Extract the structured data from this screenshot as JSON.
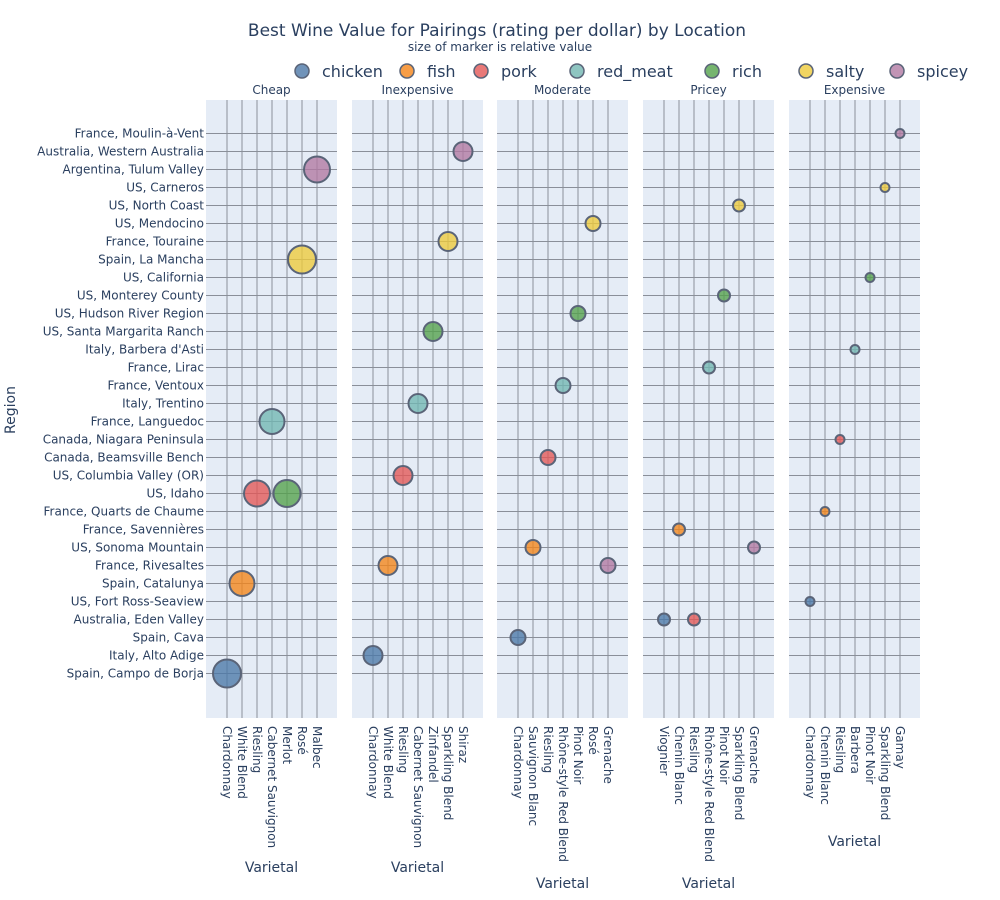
{
  "chart_data": {
    "type": "scatter",
    "title": "Best Wine Value for Pairings (rating per dollar) by Location",
    "subtitle": "size of marker is relative value",
    "ylabel": "Region",
    "xlabel": "Varietal",
    "legend_placement": "top-right",
    "colors": {
      "chicken": "#4c78a8",
      "fish": "#f58518",
      "pork": "#e45756",
      "red_meat": "#72b7b2",
      "rich": "#54a24b",
      "salty": "#eeca3b",
      "spicey": "#b279a2"
    },
    "legend": [
      "chicken",
      "fish",
      "pork",
      "red_meat",
      "rich",
      "salty",
      "spicey"
    ],
    "regions": [
      "Spain, Campo de Borja",
      "Italy, Alto Adige",
      "Spain, Cava",
      "Australia, Eden Valley",
      "US, Fort Ross-Seaview",
      "Spain, Catalunya",
      "France, Rivesaltes",
      "US, Sonoma Mountain",
      "France, Savennières",
      "France, Quarts de Chaume",
      "US, Idaho",
      "US, Columbia Valley (OR)",
      "Canada, Beamsville Bench",
      "Canada, Niagara Peninsula",
      "France, Languedoc",
      "Italy, Trentino",
      "France, Ventoux",
      "France, Lirac",
      "Italy, Barbera d'Asti",
      "US, Santa Margarita Ranch",
      "US, Hudson River Region",
      "US, Monterey County",
      "US, California",
      "Spain, La Mancha",
      "France, Touraine",
      "US, Mendocino",
      "US, North Coast",
      "US, Carneros",
      "Argentina, Tulum Valley",
      "Australia, Western Australia",
      "France, Moulin-à-Vent"
    ],
    "panels": [
      {
        "name": "Cheap",
        "categories": [
          "Chardonnay",
          "White Blend",
          "Riesling",
          "Cabernet Sauvignon",
          "Merlot",
          "Rosé",
          "Malbec"
        ],
        "points": [
          {
            "x": "Chardonnay",
            "y": "Spain, Campo de Borja",
            "pairing": "chicken",
            "size": 14
          },
          {
            "x": "White Blend",
            "y": "Spain, Catalunya",
            "pairing": "fish",
            "size": 12.5
          },
          {
            "x": "Riesling",
            "y": "US, Idaho",
            "pairing": "pork",
            "size": 13
          },
          {
            "x": "Cabernet Sauvignon",
            "y": "France, Languedoc",
            "pairing": "red_meat",
            "size": 12.5
          },
          {
            "x": "Merlot",
            "y": "US, Idaho",
            "pairing": "rich",
            "size": 13.5
          },
          {
            "x": "Rosé",
            "y": "Spain, La Mancha",
            "pairing": "salty",
            "size": 14
          },
          {
            "x": "Malbec",
            "y": "Argentina, Tulum Valley",
            "pairing": "spicey",
            "size": 13
          }
        ]
      },
      {
        "name": "Inexpensive",
        "categories": [
          "Chardonnay",
          "White Blend",
          "Riesling",
          "Cabernet Sauvignon",
          "Zinfandel",
          "Sparkling Blend",
          "Shiraz"
        ],
        "points": [
          {
            "x": "Chardonnay",
            "y": "Italy, Alto Adige",
            "pairing": "chicken",
            "size": 9.5
          },
          {
            "x": "White Blend",
            "y": "France, Rivesaltes",
            "pairing": "fish",
            "size": 9.5
          },
          {
            "x": "Riesling",
            "y": "US, Columbia Valley (OR)",
            "pairing": "pork",
            "size": 9.5
          },
          {
            "x": "Cabernet Sauvignon",
            "y": "Italy, Trentino",
            "pairing": "red_meat",
            "size": 9.5
          },
          {
            "x": "Zinfandel",
            "y": "US, Santa Margarita Ranch",
            "pairing": "rich",
            "size": 9.5
          },
          {
            "x": "Sparkling Blend",
            "y": "France, Touraine",
            "pairing": "salty",
            "size": 9.5
          },
          {
            "x": "Shiraz",
            "y": "Australia, Western Australia",
            "pairing": "spicey",
            "size": 9.5
          }
        ]
      },
      {
        "name": "Moderate",
        "categories": [
          "Chardonnay",
          "Sauvignon Blanc",
          "Riesling",
          "Rhône-style Red Blend",
          "Pinot Noir",
          "Rosé",
          "Grenache"
        ],
        "points": [
          {
            "x": "Chardonnay",
            "y": "Spain, Cava",
            "pairing": "chicken",
            "size": 7.5
          },
          {
            "x": "Sauvignon Blanc",
            "y": "US, Sonoma Mountain",
            "pairing": "fish",
            "size": 7.5
          },
          {
            "x": "Riesling",
            "y": "Canada, Beamsville Bench",
            "pairing": "pork",
            "size": 7.5
          },
          {
            "x": "Rhône-style Red Blend",
            "y": "France, Ventoux",
            "pairing": "red_meat",
            "size": 7.5
          },
          {
            "x": "Pinot Noir",
            "y": "US, Hudson River Region",
            "pairing": "rich",
            "size": 7.5
          },
          {
            "x": "Rosé",
            "y": "US, Mendocino",
            "pairing": "salty",
            "size": 7.5
          },
          {
            "x": "Grenache",
            "y": "France, Rivesaltes",
            "pairing": "spicey",
            "size": 7.5
          }
        ]
      },
      {
        "name": "Pricey",
        "categories": [
          "Viognier",
          "Chenin Blanc",
          "Riesling",
          "Rhône-style Red Blend",
          "Pinot Noir",
          "Sparkling Blend",
          "Grenache"
        ],
        "points": [
          {
            "x": "Viognier",
            "y": "Australia, Eden Valley",
            "pairing": "chicken",
            "size": 6
          },
          {
            "x": "Chenin Blanc",
            "y": "France, Savennières",
            "pairing": "fish",
            "size": 6
          },
          {
            "x": "Riesling",
            "y": "Australia, Eden Valley",
            "pairing": "pork",
            "size": 6
          },
          {
            "x": "Rhône-style Red Blend",
            "y": "France, Lirac",
            "pairing": "red_meat",
            "size": 6
          },
          {
            "x": "Pinot Noir",
            "y": "US, Monterey County",
            "pairing": "rich",
            "size": 6
          },
          {
            "x": "Sparkling Blend",
            "y": "US, North Coast",
            "pairing": "salty",
            "size": 6
          },
          {
            "x": "Grenache",
            "y": "US, Sonoma Mountain",
            "pairing": "spicey",
            "size": 6
          }
        ]
      },
      {
        "name": "Expensive",
        "categories": [
          "Chardonnay",
          "Chenin Blanc",
          "Riesling",
          "Barbera",
          "Pinot Noir",
          "Sparkling Blend",
          "Gamay"
        ],
        "points": [
          {
            "x": "Chardonnay",
            "y": "US, Fort Ross-Seaview",
            "pairing": "chicken",
            "size": 4.5
          },
          {
            "x": "Chenin Blanc",
            "y": "France, Quarts de Chaume",
            "pairing": "fish",
            "size": 4.5
          },
          {
            "x": "Riesling",
            "y": "Canada, Niagara Peninsula",
            "pairing": "pork",
            "size": 4.5
          },
          {
            "x": "Barbera",
            "y": "Italy, Barbera d'Asti",
            "pairing": "red_meat",
            "size": 4.5
          },
          {
            "x": "Pinot Noir",
            "y": "US, California",
            "pairing": "rich",
            "size": 4.5
          },
          {
            "x": "Sparkling Blend",
            "y": "US, Carneros",
            "pairing": "salty",
            "size": 4.5
          },
          {
            "x": "Gamay",
            "y": "France, Moulin-à-Vent",
            "pairing": "spicey",
            "size": 4.5
          }
        ]
      }
    ]
  }
}
